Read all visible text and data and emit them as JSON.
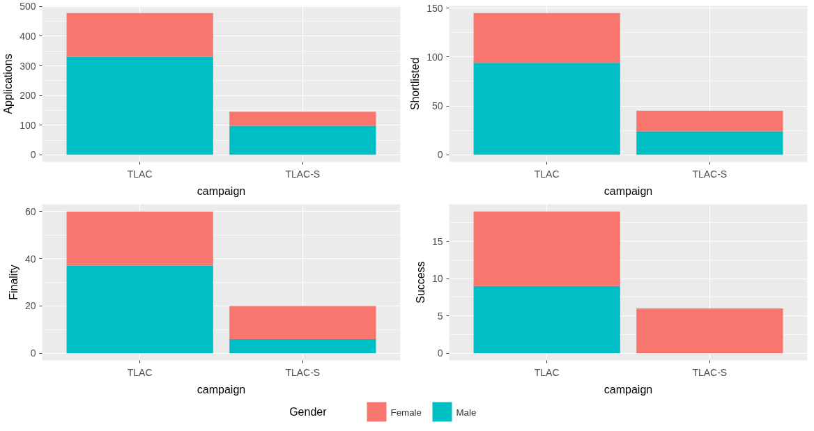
{
  "chart_data": [
    {
      "type": "bar",
      "stacked": true,
      "xlabel": "campaign",
      "ylabel": "Applications",
      "categories": [
        "TLAC",
        "TLAC-S"
      ],
      "ylim": [
        -23.9,
        501.9
      ],
      "yticks": [
        0,
        100,
        200,
        300,
        400,
        500
      ],
      "grid": true,
      "legend": "bottom",
      "legend_title": "Gender",
      "series": [
        {
          "name": "Male",
          "color": "#00bfc4",
          "values": [
            330,
            98
          ]
        },
        {
          "name": "Female",
          "color": "#f8766d",
          "values": [
            148,
            47
          ]
        }
      ]
    },
    {
      "type": "bar",
      "stacked": true,
      "xlabel": "campaign",
      "ylabel": "Shortlisted",
      "categories": [
        "TLAC",
        "TLAC-S"
      ],
      "ylim": [
        -7.25,
        152.25
      ],
      "yticks": [
        0,
        50,
        100,
        150
      ],
      "grid": true,
      "series": [
        {
          "color": "#00bfc4",
          "values": [
            94,
            24
          ]
        },
        {
          "color": "#f8766d",
          "values": [
            51,
            21
          ]
        }
      ]
    },
    {
      "type": "bar",
      "stacked": true,
      "xlabel": "campaign",
      "ylabel": "Finality",
      "categories": [
        "TLAC",
        "TLAC-S"
      ],
      "ylim": [
        -3,
        63
      ],
      "yticks": [
        0,
        20,
        40,
        60
      ],
      "grid": true,
      "series": [
        {
          "color": "#00bfc4",
          "values": [
            37,
            6
          ]
        },
        {
          "color": "#f8766d",
          "values": [
            23,
            14
          ]
        }
      ]
    },
    {
      "type": "bar",
      "stacked": true,
      "xlabel": "campaign",
      "ylabel": "Success",
      "categories": [
        "TLAC",
        "TLAC-S"
      ],
      "ylim": [
        -0.95,
        19.95
      ],
      "yticks": [
        0,
        5,
        10,
        15
      ],
      "grid": true,
      "series": [
        {
          "color": "#00bfc4",
          "values": [
            9,
            0
          ]
        },
        {
          "color": "#f8766d",
          "values": [
            10,
            6
          ]
        }
      ]
    }
  ]
}
